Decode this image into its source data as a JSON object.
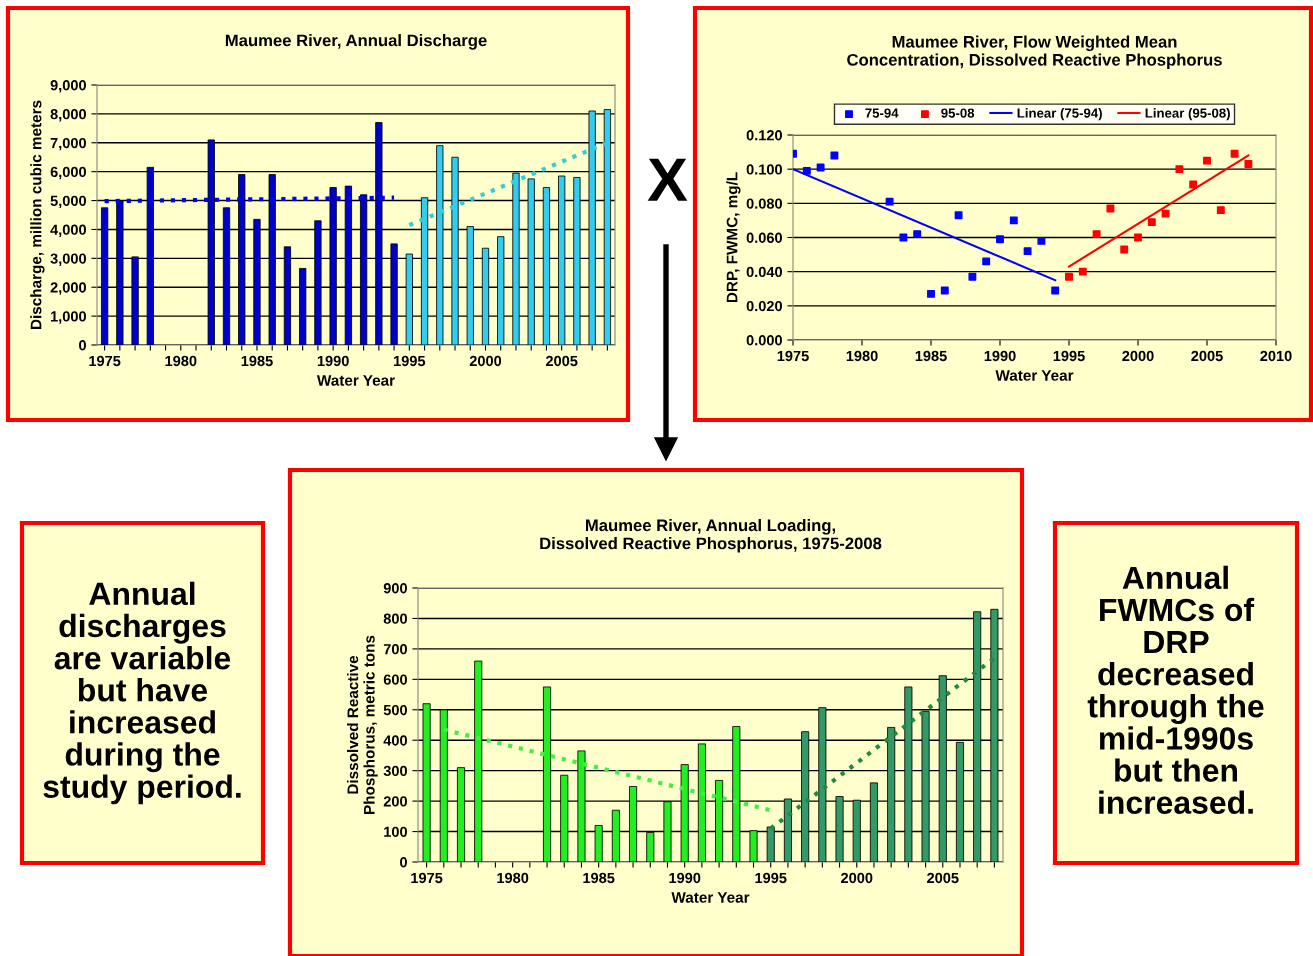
{
  "chart_data": [
    {
      "type": "bar",
      "title": "Maumee River, Annual Discharge",
      "xlabel": "Water Year",
      "ylabel": "Discharge, million cubic meters",
      "grid": "y",
      "xlim": [
        1974.5,
        2008.5
      ],
      "ylim": [
        0,
        9000
      ],
      "xticks": [
        1975,
        {
          "value": 1976,
          "label": null
        },
        {
          "value": 1977,
          "label": null
        },
        {
          "value": 1978,
          "label": null
        },
        {
          "value": 1979,
          "label": null
        },
        1980,
        {
          "value": 1981,
          "label": null
        },
        {
          "value": 1982,
          "label": null
        },
        {
          "value": 1983,
          "label": null
        },
        {
          "value": 1984,
          "label": null
        },
        1985,
        {
          "value": 1986,
          "label": null
        },
        {
          "value": 1987,
          "label": null
        },
        {
          "value": 1988,
          "label": null
        },
        {
          "value": 1989,
          "label": null
        },
        1990,
        {
          "value": 1991,
          "label": null
        },
        {
          "value": 1992,
          "label": null
        },
        {
          "value": 1993,
          "label": null
        },
        {
          "value": 1994,
          "label": null
        },
        1995,
        {
          "value": 1996,
          "label": null
        },
        {
          "value": 1997,
          "label": null
        },
        {
          "value": 1998,
          "label": null
        },
        {
          "value": 1999,
          "label": null
        },
        2000,
        {
          "value": 2001,
          "label": null
        },
        {
          "value": 2002,
          "label": null
        },
        {
          "value": 2003,
          "label": null
        },
        {
          "value": 2004,
          "label": null
        },
        2005,
        {
          "value": 2006,
          "label": null
        },
        {
          "value": 2007,
          "label": null
        },
        {
          "value": 2008,
          "label": null
        }
      ],
      "yticks": [
        0,
        {
          "value": 1000,
          "label": "1,000"
        },
        {
          "value": 2000,
          "label": "2,000"
        },
        {
          "value": 3000,
          "label": "3,000"
        },
        {
          "value": 4000,
          "label": "4,000"
        },
        {
          "value": 5000,
          "label": "5,000"
        },
        {
          "value": 6000,
          "label": "6,000"
        },
        {
          "value": 7000,
          "label": "7,000"
        },
        {
          "value": 8000,
          "label": "8,000"
        },
        {
          "value": 9000,
          "label": "9,000"
        }
      ],
      "series": [
        {
          "type": "bar",
          "color": "#0000cc",
          "x": [
            1975,
            1976,
            1977,
            1978,
            1982,
            1983,
            1984,
            1985,
            1986,
            1987,
            1988,
            1989,
            1990,
            1991,
            1992,
            1993,
            1994
          ],
          "values": [
            4750,
            5000,
            3050,
            6150,
            7100,
            4750,
            5900,
            4350,
            5900,
            3400,
            2650,
            4300,
            5450,
            5500,
            5200,
            7700,
            3500
          ]
        },
        {
          "type": "bar",
          "color": "#33ccee",
          "x": [
            1995,
            1996,
            1997,
            1998,
            1999,
            2000,
            2001,
            2002,
            2003,
            2004,
            2005,
            2006,
            2007,
            2008
          ],
          "values": [
            3150,
            5100,
            6900,
            6500,
            4100,
            3350,
            3750,
            5950,
            5750,
            5450,
            5850,
            5800,
            8100,
            8150
          ]
        },
        {
          "type": "line",
          "color": "#0000ff",
          "line_style": "dotted",
          "x": [
            1975,
            1994
          ],
          "values": [
            4980,
            5100
          ]
        },
        {
          "type": "line",
          "color": "#33ccdd",
          "line_style": "dotted",
          "x": [
            1995,
            2008
          ],
          "values": [
            4150,
            7000
          ]
        }
      ]
    },
    {
      "type": "other",
      "annotations": [
        "X"
      ]
    },
    {
      "type": "scatter",
      "title": "Maumee River, Flow Weighted Mean\nConcentration, Dissolved Reactive Phosphorus",
      "xlabel": "Water Year",
      "ylabel": "DRP, FWMC, mg/L",
      "grid": "y",
      "legend": "top",
      "xlim": [
        1975,
        2010
      ],
      "ylim": [
        0,
        0.12
      ],
      "xticks": [
        1975,
        1980,
        1985,
        1990,
        1995,
        2000,
        2005,
        2010
      ],
      "yticks": [
        {
          "value": 0,
          "label": "0.000"
        },
        {
          "value": 0.02,
          "label": "0.020"
        },
        {
          "value": 0.04,
          "label": "0.040"
        },
        {
          "value": 0.06,
          "label": "0.060"
        },
        {
          "value": 0.08,
          "label": "0.080"
        },
        {
          "value": 0.1,
          "label": "0.100"
        },
        {
          "value": 0.12,
          "label": "0.120"
        }
      ],
      "series": [
        {
          "name": "75-94",
          "type": "scatter",
          "marker": "square",
          "color": "#0000ff",
          "x": [
            1975,
            1976,
            1977,
            1978,
            1982,
            1983,
            1984,
            1985,
            1986,
            1987,
            1988,
            1989,
            1990,
            1991,
            1992,
            1993,
            1994
          ],
          "values": [
            0.109,
            0.099,
            0.101,
            0.108,
            0.081,
            0.06,
            0.062,
            0.027,
            0.029,
            0.073,
            0.037,
            0.046,
            0.059,
            0.07,
            0.052,
            0.058,
            0.029
          ]
        },
        {
          "name": "95-08",
          "type": "scatter",
          "marker": "square",
          "color": "#ff0000",
          "x": [
            1995,
            1996,
            1997,
            1998,
            1999,
            2000,
            2001,
            2002,
            2003,
            2004,
            2005,
            2006,
            2007,
            2008
          ],
          "values": [
            0.037,
            0.04,
            0.062,
            0.077,
            0.053,
            0.06,
            0.069,
            0.074,
            0.1,
            0.091,
            0.105,
            0.076,
            0.109,
            0.103
          ]
        },
        {
          "name": "Linear (75-94)",
          "type": "line",
          "line_style": "solid",
          "color": "#0000ff",
          "x": [
            1975,
            1994
          ],
          "values": [
            0.1,
            0.035
          ]
        },
        {
          "name": "Linear (95-08)",
          "type": "line",
          "line_style": "solid",
          "color": "#ff0000",
          "x": [
            1995,
            2008
          ],
          "values": [
            0.043,
            0.108
          ]
        }
      ]
    },
    {
      "type": "other",
      "annotations": [
        "Annual\ndischarges\nare variable\nbut have\nincreased\nduring the\nstudy period."
      ]
    },
    {
      "type": "bar",
      "title": "Maumee River, Annual Loading,\nDissolved Reactive Phosphorus, 1975-2008",
      "xlabel": "Water Year",
      "ylabel": "Dissolved Reactive\nPhosphorus, metric tons",
      "grid": "y",
      "xlim": [
        1974.5,
        2008.5
      ],
      "ylim": [
        0,
        900
      ],
      "xticks": [
        1975,
        {
          "value": 1976,
          "label": null
        },
        {
          "value": 1977,
          "label": null
        },
        {
          "value": 1978,
          "label": null
        },
        {
          "value": 1979,
          "label": null
        },
        1980,
        {
          "value": 1981,
          "label": null
        },
        {
          "value": 1982,
          "label": null
        },
        {
          "value": 1983,
          "label": null
        },
        {
          "value": 1984,
          "label": null
        },
        1985,
        {
          "value": 1986,
          "label": null
        },
        {
          "value": 1987,
          "label": null
        },
        {
          "value": 1988,
          "label": null
        },
        {
          "value": 1989,
          "label": null
        },
        1990,
        {
          "value": 1991,
          "label": null
        },
        {
          "value": 1992,
          "label": null
        },
        {
          "value": 1993,
          "label": null
        },
        {
          "value": 1994,
          "label": null
        },
        1995,
        {
          "value": 1996,
          "label": null
        },
        {
          "value": 1997,
          "label": null
        },
        {
          "value": 1998,
          "label": null
        },
        {
          "value": 1999,
          "label": null
        },
        2000,
        {
          "value": 2001,
          "label": null
        },
        {
          "value": 2002,
          "label": null
        },
        {
          "value": 2003,
          "label": null
        },
        {
          "value": 2004,
          "label": null
        },
        2005,
        {
          "value": 2006,
          "label": null
        },
        {
          "value": 2007,
          "label": null
        },
        {
          "value": 2008,
          "label": null
        }
      ],
      "yticks": [
        0,
        100,
        200,
        300,
        400,
        500,
        600,
        700,
        800,
        900
      ],
      "series": [
        {
          "type": "bar",
          "color": "#22ee22",
          "x": [
            1975,
            1976,
            1977,
            1978,
            1982,
            1983,
            1984,
            1985,
            1986,
            1987,
            1988,
            1989,
            1990,
            1991,
            1992,
            1993,
            1994
          ],
          "values": [
            520,
            500,
            310,
            660,
            575,
            285,
            365,
            120,
            170,
            248,
            97,
            198,
            320,
            388,
            268,
            445,
            103
          ]
        },
        {
          "type": "bar",
          "color": "#339966",
          "x": [
            1995,
            1996,
            1997,
            1998,
            1999,
            2000,
            2001,
            2002,
            2003,
            2004,
            2005,
            2006,
            2007,
            2008
          ],
          "values": [
            115,
            207,
            428,
            507,
            215,
            203,
            260,
            442,
            575,
            495,
            612,
            393,
            822,
            830
          ]
        },
        {
          "type": "line",
          "color": "#44ee44",
          "line_style": "dotted",
          "x": [
            1976,
            1995
          ],
          "values": [
            435,
            170
          ]
        },
        {
          "type": "line",
          "color": "#228844",
          "line_style": "dotted",
          "x": [
            1995,
            2008
          ],
          "values": [
            110,
            670
          ]
        }
      ]
    },
    {
      "type": "other",
      "annotations": [
        "Annual\nFWMCs of\nDRP\ndecreased\nthrough the\nmid-1990s\nbut then\nincreased."
      ]
    }
  ]
}
